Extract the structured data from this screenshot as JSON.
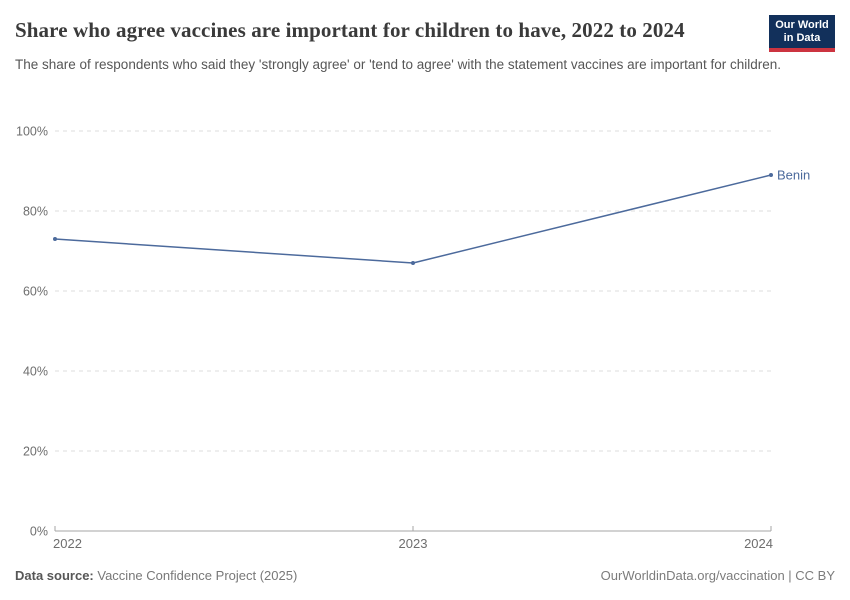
{
  "header": {
    "title": "Share who agree vaccines are important for children to have, 2022 to 2024",
    "subtitle": "The share of respondents who said they 'strongly agree' or 'tend to agree' with the statement vaccines are important for children.",
    "logo_line1": "Our World",
    "logo_line2": "in Data"
  },
  "chart_data": {
    "type": "line",
    "title": "Share who agree vaccines are important for children to have, 2022 to 2024",
    "x": [
      2022,
      2023,
      2024
    ],
    "xtick_labels": [
      "2022",
      "2023",
      "2024"
    ],
    "series": [
      {
        "name": "Benin",
        "values": [
          73,
          67,
          89
        ]
      }
    ],
    "xlabel": "",
    "ylabel": "",
    "ylim": [
      0,
      100
    ],
    "yticks": [
      {
        "value": 0,
        "label": "0%"
      },
      {
        "value": 20,
        "label": "20%"
      },
      {
        "value": 40,
        "label": "40%"
      },
      {
        "value": 60,
        "label": "60%"
      },
      {
        "value": 80,
        "label": "80%"
      },
      {
        "value": 100,
        "label": "100%"
      }
    ],
    "grid": "horizontal-dashed",
    "legend_position": "line-end-label",
    "line_color": "#4c6a9c"
  },
  "footer": {
    "source_label": "Data source:",
    "source_value": "Vaccine Confidence Project (2025)",
    "license": "OurWorldinData.org/vaccination | CC BY"
  },
  "colors": {
    "accent_line": "#4c6a9c",
    "grid": "#dddddd",
    "axis": "#a5a5a5",
    "tick_text": "#6e6e6e",
    "title_text": "#3a3a3a",
    "subtitle_text": "#565656",
    "logo_bg": "#12305b",
    "logo_red": "#cc3440",
    "logo_text": "#ffffff"
  }
}
